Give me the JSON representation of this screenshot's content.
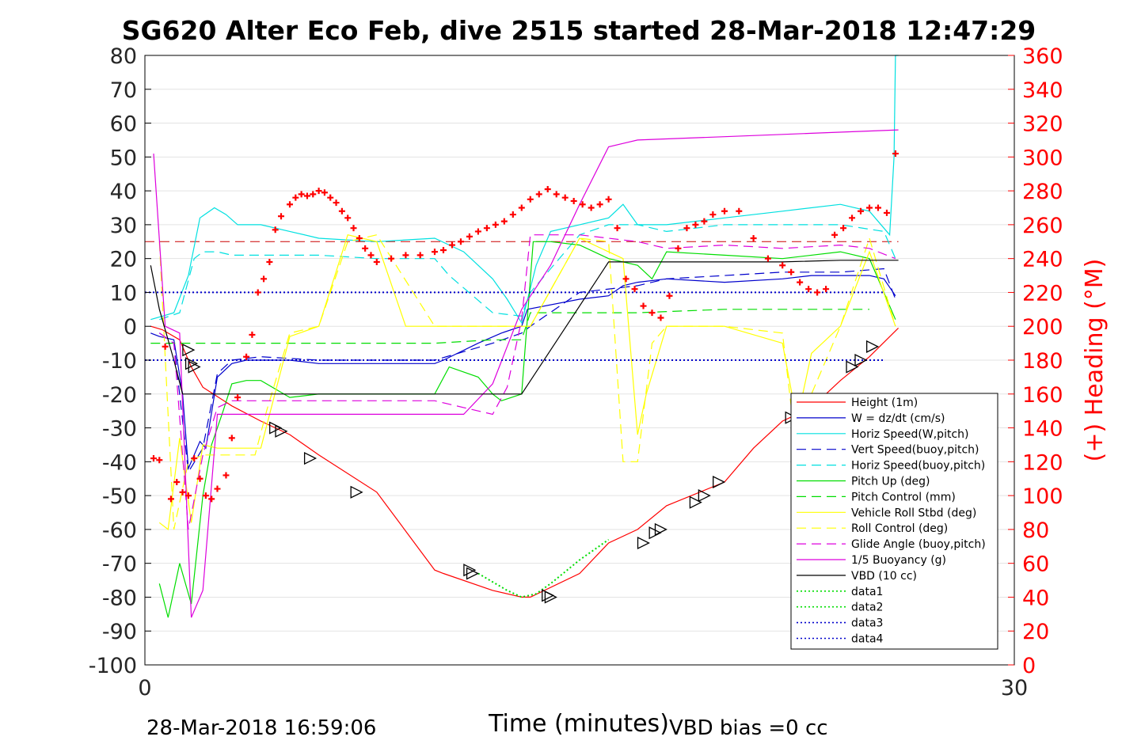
{
  "chart_data": {
    "type": "line",
    "title": "SG620 Alter Eco Feb, dive 2515 started 28-Mar-2018 12:47:29",
    "xlabel": "Time (minutes)",
    "ylabel": "",
    "y2label": "(+) Heading (°M)",
    "xlim": [
      0,
      30
    ],
    "ylim": [
      -100,
      80
    ],
    "y2lim": [
      0,
      360
    ],
    "xticks": [
      "0",
      "30"
    ],
    "yticks": [
      "80",
      "70",
      "60",
      "50",
      "40",
      "30",
      "20",
      "10",
      "0",
      "-10",
      "-20",
      "-30",
      "-40",
      "-50",
      "-60",
      "-70",
      "-80",
      "-90",
      "-100"
    ],
    "y2ticks": [
      "360",
      "340",
      "320",
      "300",
      "280",
      "260",
      "240",
      "220",
      "200",
      "180",
      "160",
      "140",
      "120",
      "100",
      "80",
      "60",
      "40",
      "20",
      "0"
    ],
    "grid": true,
    "legend_position": "lower-right",
    "footer_left": "28-Mar-2018 16:59:06",
    "footer_right": "VBD bias =0 cc",
    "colors": {
      "height": "#ff0000",
      "w": "#0000cc",
      "hspeed": "#00e0e0",
      "pitch": "#00dd00",
      "roll": "#ffff00",
      "glide": "#dd00dd",
      "vbd": "#000000",
      "heading": "#ff0000",
      "data1": "#00dd00",
      "data3": "#0000cc"
    },
    "series": [
      {
        "name": "Height (1m)",
        "style": "solid",
        "color": "#ff0000",
        "x": [
          0.2,
          0.6,
          1.2,
          1.6,
          2.0,
          3.0,
          4.0,
          5.0,
          6.0,
          8.0,
          10.0,
          10.3,
          12.0,
          13.0,
          13.3,
          15.0,
          16.0,
          17.0,
          18.0,
          20.0,
          21.0,
          22.0,
          23.0,
          24.0,
          25.0,
          26.0
        ],
        "y": [
          0,
          -1,
          -4,
          -12,
          -18,
          -23.5,
          -28,
          -32,
          -38,
          -49,
          -72,
          -73,
          -78,
          -80,
          -80,
          -73,
          -64,
          -60,
          -53,
          -46,
          -36,
          -28,
          -24,
          -16,
          -9,
          -0.5
        ]
      },
      {
        "name": "W = dz/dt (cm/s)",
        "style": "solid",
        "color": "#0000cc",
        "x": [
          0.2,
          0.5,
          1.0,
          1.3,
          1.5,
          1.9,
          2.1,
          2.5,
          3.0,
          3.5,
          4.0,
          5.0,
          6.0,
          8.0,
          10.0,
          10.3,
          11.5,
          12.3,
          13.0,
          13.2,
          15.0,
          16.0,
          16.5,
          17.0,
          18.0,
          20.0,
          22.0,
          23.0,
          24.0,
          25.0,
          25.5,
          25.9
        ],
        "y": [
          -2,
          -3,
          -4,
          -20,
          -42,
          -34,
          -36,
          -15,
          -11,
          -10,
          -10,
          -10,
          -11,
          -11,
          -11,
          -10,
          -5,
          -2,
          0,
          5,
          8,
          9,
          12,
          13,
          14,
          13,
          14,
          15,
          15,
          15,
          14,
          9
        ]
      },
      {
        "name": "Horiz Speed(W,pitch)",
        "style": "solid",
        "color": "#00e0e0",
        "x": [
          0.2,
          0.6,
          1.0,
          1.5,
          1.9,
          2.4,
          2.8,
          3.2,
          4.0,
          5.0,
          6.0,
          8.0,
          10.0,
          11.0,
          12.0,
          12.5,
          13.0,
          13.5,
          14.0,
          15.0,
          16.0,
          16.5,
          17.0,
          18.0,
          20.0,
          22.0,
          24.0,
          25.0,
          25.7,
          25.85,
          25.9,
          26.0
        ],
        "y": [
          2,
          3,
          4,
          15,
          32,
          35,
          33,
          30,
          30,
          28,
          26,
          25,
          26,
          22,
          14,
          8,
          1,
          18,
          28,
          30,
          32,
          36,
          30,
          30,
          32,
          34,
          36,
          34,
          27,
          50,
          80,
          80
        ]
      },
      {
        "name": "Vert Speed(buoy,pitch)",
        "style": "dashed",
        "color": "#0000cc",
        "x": [
          0.5,
          1.0,
          1.5,
          2.0,
          2.5,
          3.0,
          4.0,
          6.0,
          8.0,
          10.0,
          12.0,
          13.0,
          13.3,
          15.0,
          17.0,
          18.0,
          20.0,
          22.0,
          24.0,
          25.5,
          25.9
        ],
        "y": [
          -2,
          -5,
          -43,
          -36,
          -14,
          -10,
          -9,
          -10,
          -10,
          -10,
          -5,
          -2,
          0,
          10,
          12,
          14,
          15,
          16,
          16,
          17,
          8
        ]
      },
      {
        "name": "Horiz Speed(buoy,pitch)",
        "style": "dashed",
        "color": "#00e0e0",
        "x": [
          0.5,
          1.2,
          1.7,
          2.0,
          2.5,
          3.0,
          4.0,
          5.0,
          6.0,
          8.0,
          10.0,
          10.5,
          12.0,
          13.0,
          13.3,
          15.0,
          16.0,
          17.0,
          18.0,
          20.0,
          22.0,
          24.0,
          25.5,
          25.9
        ],
        "y": [
          2,
          4,
          20,
          22,
          22,
          21,
          21,
          21,
          21,
          20,
          20,
          15,
          4,
          3,
          10,
          27,
          30,
          30,
          28,
          30,
          30,
          30,
          28,
          20
        ]
      },
      {
        "name": "Pitch Up (deg)",
        "style": "solid",
        "color": "#00dd00",
        "x": [
          0.5,
          0.8,
          1.2,
          1.6,
          2.0,
          2.3,
          2.7,
          3.0,
          3.5,
          4.0,
          5.0,
          6.0,
          8.0,
          10.0,
          10.5,
          11.5,
          12.0,
          12.3,
          13.0,
          13.4,
          14.0,
          15.0,
          16.0,
          17.0,
          17.5,
          18.0,
          20.0,
          22.0,
          24.0,
          25.0,
          25.9
        ],
        "y": [
          -76,
          -86,
          -70,
          -82,
          -50,
          -35,
          -25,
          -17,
          -16,
          -16,
          -21,
          -20,
          -20,
          -20,
          -12,
          -15,
          -20,
          -22,
          -20,
          25,
          25,
          24,
          20,
          18,
          14,
          22,
          21,
          20,
          22,
          20,
          2
        ]
      },
      {
        "name": "Pitch Control (mm)",
        "style": "dashed",
        "color": "#00dd00",
        "x": [
          0.2,
          1.0,
          2.0,
          4.0,
          6.0,
          8.0,
          10.0,
          12.0,
          13.0,
          13.3,
          15.0,
          17.0,
          20.0,
          22.0,
          24.0,
          25.0
        ],
        "y": [
          -5,
          -5,
          -5,
          -5,
          -5,
          -5,
          -5,
          -4,
          -4,
          4,
          4,
          4,
          5,
          5,
          5,
          5
        ]
      },
      {
        "name": "Vehicle Roll Stbd (deg)",
        "style": "solid",
        "color": "#ffff00",
        "x": [
          0.5,
          0.8,
          1.2,
          1.6,
          2.0,
          2.5,
          3.5,
          4.0,
          5.0,
          6.0,
          7.0,
          8.0,
          9.0,
          10.0,
          12.0,
          13.0,
          13.3,
          15.0,
          16.5,
          17.0,
          17.3,
          18.0,
          20.0,
          22.0,
          22.5,
          23.0,
          24.0,
          25.0,
          25.9
        ],
        "y": [
          -58,
          -60,
          -33,
          -58,
          -35,
          -36,
          -36,
          -36,
          -3,
          0,
          27,
          25,
          0,
          0,
          0,
          0,
          0,
          26,
          20,
          -32,
          -20,
          0,
          0,
          -5,
          -28,
          -8,
          0,
          22,
          0
        ]
      },
      {
        "name": "Roll Control (deg)",
        "style": "dashed",
        "color": "#ffff00",
        "x": [
          0.5,
          1.0,
          1.5,
          2.0,
          3.0,
          3.8,
          4.2,
          5.0,
          6.0,
          7.0,
          8.0,
          10.0,
          12.0,
          13.0,
          13.3,
          15.0,
          16.0,
          16.5,
          17.0,
          17.5,
          18.0,
          20.0,
          22.0,
          22.5,
          23.0,
          24.0,
          25.0,
          25.9
        ],
        "y": [
          25,
          -60,
          -40,
          -38,
          -38,
          -38,
          -25,
          -2,
          0,
          25,
          27,
          0,
          0,
          0,
          0,
          26,
          25,
          -40,
          -40,
          -5,
          0,
          0,
          -2,
          -38,
          -20,
          0,
          26,
          0
        ]
      },
      {
        "name": "Glide Angle (buoy,pitch)",
        "style": "dashed",
        "color": "#dd00dd",
        "x": [
          0.5,
          1.0,
          1.5,
          2.0,
          2.5,
          3.0,
          4.0,
          6.0,
          8.0,
          10.0,
          11.0,
          12.0,
          12.5,
          13.0,
          13.3,
          15.0,
          17.0,
          18.0,
          20.0,
          22.0,
          24.0,
          25.0,
          25.9
        ],
        "y": [
          -2,
          -5,
          -60,
          -38,
          -24,
          -22,
          -22,
          -22,
          -22,
          -22,
          -24,
          -26,
          -18,
          2,
          27,
          27,
          25,
          23,
          24,
          23,
          24,
          23,
          20
        ]
      },
      {
        "name": "1/5 Buoyancy (g)",
        "style": "solid",
        "color": "#dd00dd",
        "x": [
          0.3,
          0.7,
          1.2,
          1.6,
          2.0,
          2.5,
          3.0,
          5.0,
          7.0,
          9.0,
          11.0,
          12.0,
          13.0,
          14.0,
          15.0,
          16.0,
          16.5,
          17.0,
          20.0,
          23.0,
          26.0
        ],
        "y": [
          51,
          0,
          -2,
          -86,
          -78,
          -26,
          -26,
          -26,
          -26,
          -26,
          -26,
          -17,
          5,
          18,
          36,
          53,
          54,
          55,
          56,
          57,
          58
        ]
      },
      {
        "name": "VBD (10 cc)",
        "style": "solid",
        "color": "#000000",
        "x": [
          0.2,
          0.5,
          1.0,
          1.3,
          2.0,
          3.0,
          6.0,
          9.0,
          11.5,
          13.0,
          16.0,
          18.0,
          20.0,
          22.0,
          24.0,
          26.0
        ],
        "y": [
          18,
          5,
          -10,
          -20,
          -20,
          -20,
          -20,
          -20,
          -20,
          -20,
          19,
          19,
          19,
          19,
          19.5,
          19.5
        ]
      },
      {
        "name": "data1",
        "style": "dotted",
        "color": "#00dd00",
        "x": [
          11.5,
          12.0,
          12.5,
          13.0,
          13.5,
          14.0,
          14.5,
          15.0,
          15.5,
          16.0
        ],
        "y": [
          -73,
          -75.5,
          -78,
          -80,
          -79,
          -76,
          -72.5,
          -69,
          -66,
          -63
        ]
      },
      {
        "name": "data2",
        "style": "dotted",
        "color": "#00dd00",
        "x": [],
        "y": []
      },
      {
        "name": "data3",
        "style": "dotted",
        "color": "#0000cc",
        "x": [
          0,
          25.5
        ],
        "y": [
          10,
          10
        ]
      },
      {
        "name": "data4",
        "style": "dotted",
        "color": "#0000cc",
        "x": [
          0,
          25.5
        ],
        "y": [
          -10,
          -10
        ]
      }
    ],
    "reference_lines": [
      {
        "axis": "y",
        "value": 25,
        "style": "dashed",
        "color": "#cc0000",
        "x": [
          0,
          26
        ]
      }
    ],
    "markers": {
      "shape": "triangle",
      "x": [
        1.5,
        1.6,
        1.7,
        4.5,
        4.7,
        5.7,
        7.3,
        11.2,
        11.3,
        13.9,
        14.0,
        17.2,
        17.6,
        17.8,
        19.0,
        19.3,
        19.8,
        22.3,
        22.6,
        22.8,
        23.0,
        24.4,
        24.7,
        25.1
      ],
      "y": [
        -7,
        -11,
        -12,
        -30,
        -31,
        -39,
        -49,
        -72,
        -73,
        -79.5,
        -80,
        -64,
        -61,
        -60,
        -52,
        -50,
        -46,
        -27,
        -26,
        -23,
        -22,
        -12,
        -10,
        -6
      ]
    },
    "heading_points": {
      "name": "(+) Heading (°M)",
      "axis": "right",
      "color": "#ff0000",
      "x": [
        0.3,
        0.5,
        0.7,
        0.9,
        1.1,
        1.3,
        1.5,
        1.7,
        1.9,
        2.1,
        2.3,
        2.5,
        2.8,
        3.0,
        3.2,
        3.5,
        3.7,
        3.9,
        4.1,
        4.3,
        4.5,
        4.7,
        5.0,
        5.2,
        5.4,
        5.6,
        5.8,
        6.0,
        6.2,
        6.4,
        6.6,
        6.8,
        7.0,
        7.2,
        7.4,
        7.6,
        7.8,
        8.0,
        8.5,
        9.0,
        9.5,
        10.0,
        10.3,
        10.6,
        10.9,
        11.2,
        11.5,
        11.8,
        12.1,
        12.4,
        12.7,
        13.0,
        13.3,
        13.6,
        13.9,
        14.2,
        14.5,
        14.8,
        15.1,
        15.4,
        15.7,
        16.0,
        16.3,
        16.6,
        16.9,
        17.2,
        17.5,
        17.8,
        18.1,
        18.4,
        18.7,
        19.0,
        19.3,
        19.6,
        20.0,
        20.5,
        21.0,
        21.5,
        22.0,
        22.3,
        22.6,
        22.9,
        23.2,
        23.5,
        23.8,
        24.1,
        24.4,
        24.7,
        25.0,
        25.3,
        25.6,
        25.9
      ],
      "y": [
        122,
        121,
        188,
        98,
        108,
        102,
        100,
        122,
        110,
        100,
        98,
        104,
        112,
        134,
        158,
        182,
        195,
        220,
        228,
        238,
        257,
        265,
        272,
        276,
        278,
        277,
        278,
        280,
        279,
        276,
        273,
        268,
        264,
        258,
        252,
        246,
        242,
        238,
        240,
        242,
        242,
        244,
        245,
        248,
        250,
        253,
        256,
        258,
        260,
        262,
        266,
        270,
        275,
        278,
        281,
        278,
        276,
        274,
        272,
        270,
        272,
        275,
        258,
        228,
        222,
        212,
        208,
        205,
        218,
        246,
        258,
        260,
        262,
        266,
        268,
        268,
        252,
        240,
        236,
        232,
        226,
        222,
        220,
        222,
        254,
        258,
        264,
        268,
        270,
        270,
        267,
        302
      ]
    }
  }
}
